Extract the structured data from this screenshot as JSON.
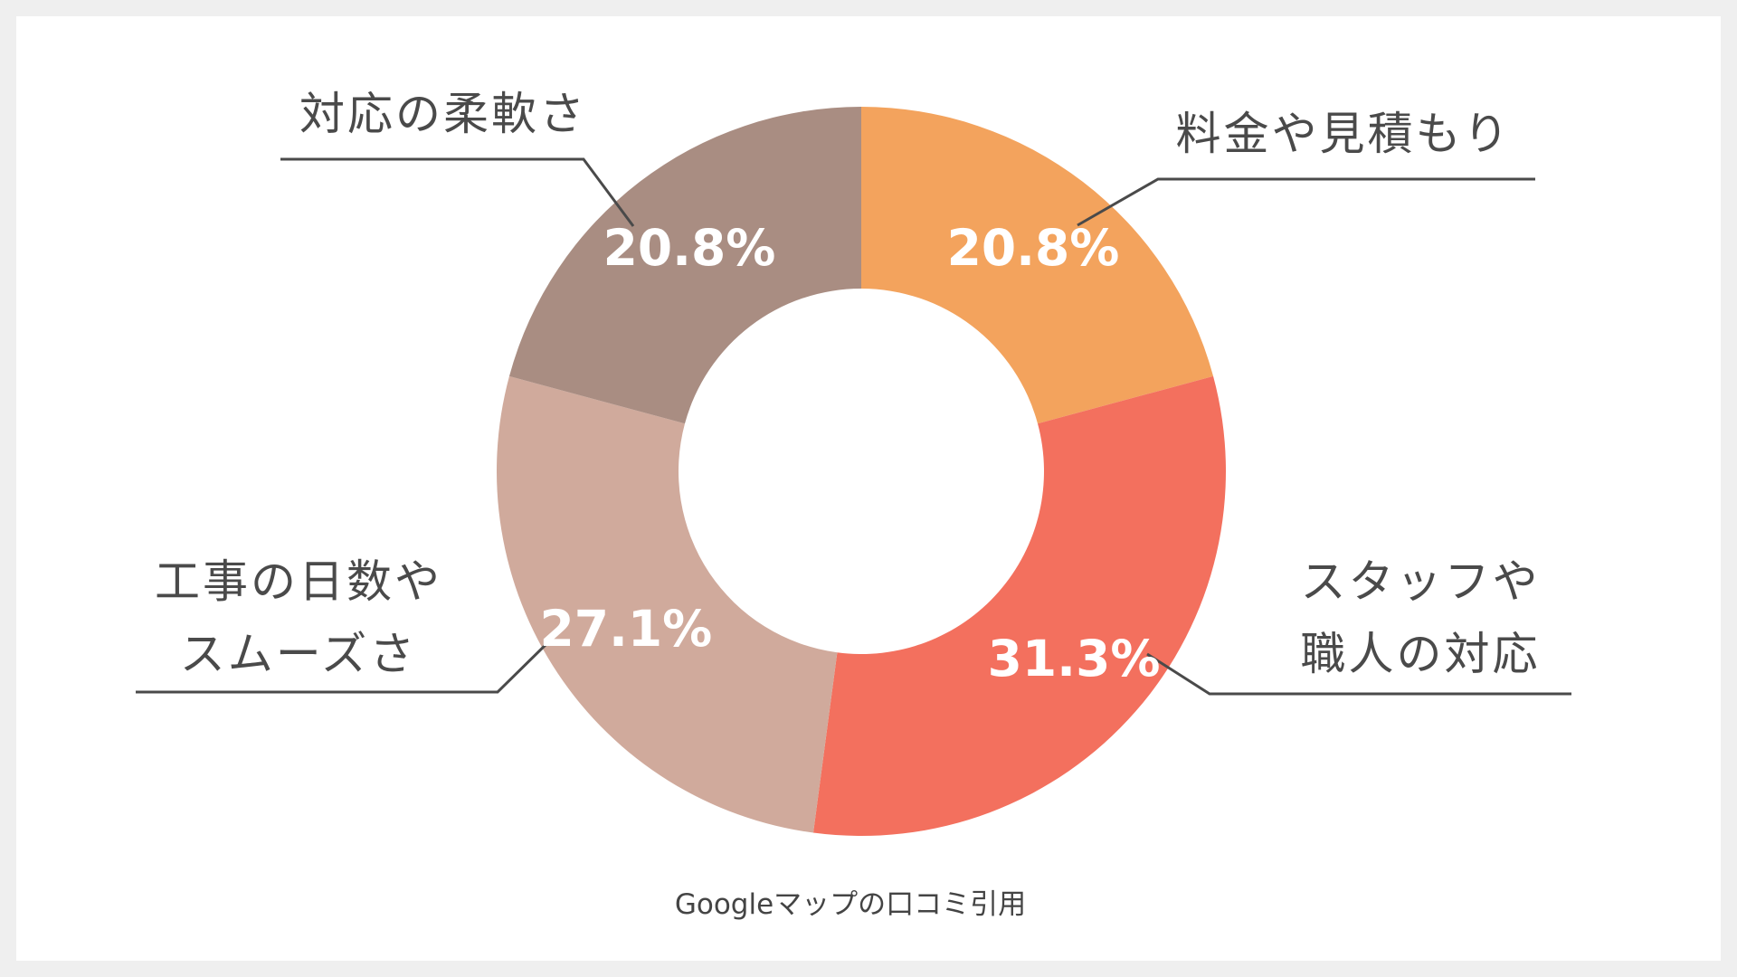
{
  "chart_data": {
    "type": "pie",
    "categories": [
      "料金や見積もり",
      "スタッフや職人の対応",
      "工事の日数やスムーズさ",
      "対応の柔軟さ"
    ],
    "values": [
      20.8,
      31.3,
      27.1,
      20.8
    ],
    "value_labels": [
      "20.8%",
      "31.3%",
      "27.1%",
      "20.8%"
    ],
    "label_lines": [
      [
        "料金や見積もり"
      ],
      [
        "スタッフや",
        "職人の対応"
      ],
      [
        "工事の日数や",
        "スムーズさ"
      ],
      [
        "対応の柔軟さ"
      ]
    ],
    "colors": [
      "#f3a35d",
      "#f3705e",
      "#d0aa9c",
      "#a98d82"
    ],
    "start": "top",
    "direction": "clockwise",
    "donut": true
  },
  "source": "Googleマップの口コミ引用"
}
